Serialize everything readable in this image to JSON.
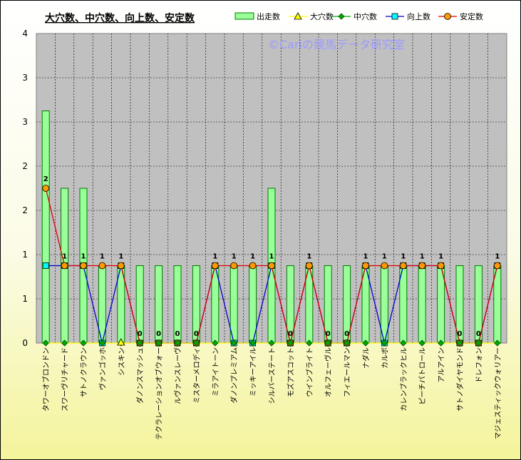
{
  "chart_data": {
    "type": "bar",
    "title": "大穴数、中穴数、向上数、安定数",
    "watermark": "©Cariの競馬データ研究室",
    "ylim": [
      0,
      4
    ],
    "ytick_labels": [
      "0",
      "1",
      "1",
      "2",
      "2",
      "3",
      "3",
      "4"
    ],
    "grid": true,
    "legend_position": "top-right",
    "colors": {
      "bar_fill": "#99ff99",
      "bar_edge": "#007a00",
      "daiana": "#ffff00",
      "chuana": "#00aa00",
      "kojo": "#0000cc",
      "kojo_marker": "#00ffff",
      "antei": "#dd0000",
      "antei_marker": "#ff9900",
      "plot_bg": "#c0c0c0"
    },
    "categories": [
      "タワーオブロンドン",
      "スワーヴリチャード",
      "サトノクラウン",
      "ヴァンゴッホ",
      "シスキン",
      "ダノンスマッシュ",
      "テクラレーションオブウォー",
      "ルヴァンスレーヴ",
      "ミスターメロディ",
      "ミラアイトーン",
      "ダノンプレミアム",
      "ミッキーアイル",
      "シルバーステート",
      "モズアスコット",
      "ウインブライト",
      "オルフェーヴル",
      "フィエールマン",
      "ナダル",
      "カルボ",
      "カレンブラックヒル",
      "ピーチパトロール",
      "アルアイン",
      "サトノダイヤモンド",
      "ドレフォン",
      "マジェスティックウォリアー"
    ],
    "series": [
      {
        "name": "出走数",
        "type": "bar",
        "values": [
          3,
          2,
          2,
          1,
          1,
          1,
          1,
          1,
          1,
          1,
          1,
          1,
          2,
          1,
          1,
          1,
          1,
          1,
          1,
          1,
          1,
          1,
          1,
          1,
          1
        ]
      },
      {
        "name": "大穴数",
        "type": "line",
        "values": [
          0,
          0,
          0,
          0,
          0,
          0,
          0,
          0,
          0,
          0,
          0,
          0,
          0,
          0,
          0,
          0,
          0,
          0,
          0,
          0,
          0,
          0,
          0,
          0,
          0
        ]
      },
      {
        "name": "中穴数",
        "type": "line",
        "values": [
          0,
          0,
          0,
          0,
          0,
          0,
          0,
          0,
          0,
          0,
          0,
          0,
          0,
          0,
          0,
          0,
          0,
          0,
          0,
          0,
          0,
          0,
          0,
          0,
          0
        ]
      },
      {
        "name": "向上数",
        "type": "line",
        "values": [
          1,
          1,
          1,
          0,
          1,
          0,
          0,
          0,
          0,
          1,
          0,
          0,
          1,
          0,
          1,
          0,
          0,
          1,
          0,
          1,
          1,
          1,
          0,
          0,
          1
        ]
      },
      {
        "name": "安定数",
        "type": "line",
        "values": [
          2,
          1,
          1,
          1,
          1,
          0,
          0,
          0,
          0,
          1,
          1,
          1,
          1,
          0,
          1,
          0,
          0,
          1,
          1,
          1,
          1,
          1,
          0,
          0,
          1
        ]
      }
    ],
    "data_labels": [
      "2",
      "1",
      "1",
      "1",
      "1",
      "0",
      "0",
      "0",
      "0",
      "1",
      "1",
      "1",
      "1",
      "0",
      "1",
      "0",
      "0",
      "1",
      "1",
      "1",
      "1",
      "1",
      "0",
      "0",
      "1"
    ]
  }
}
